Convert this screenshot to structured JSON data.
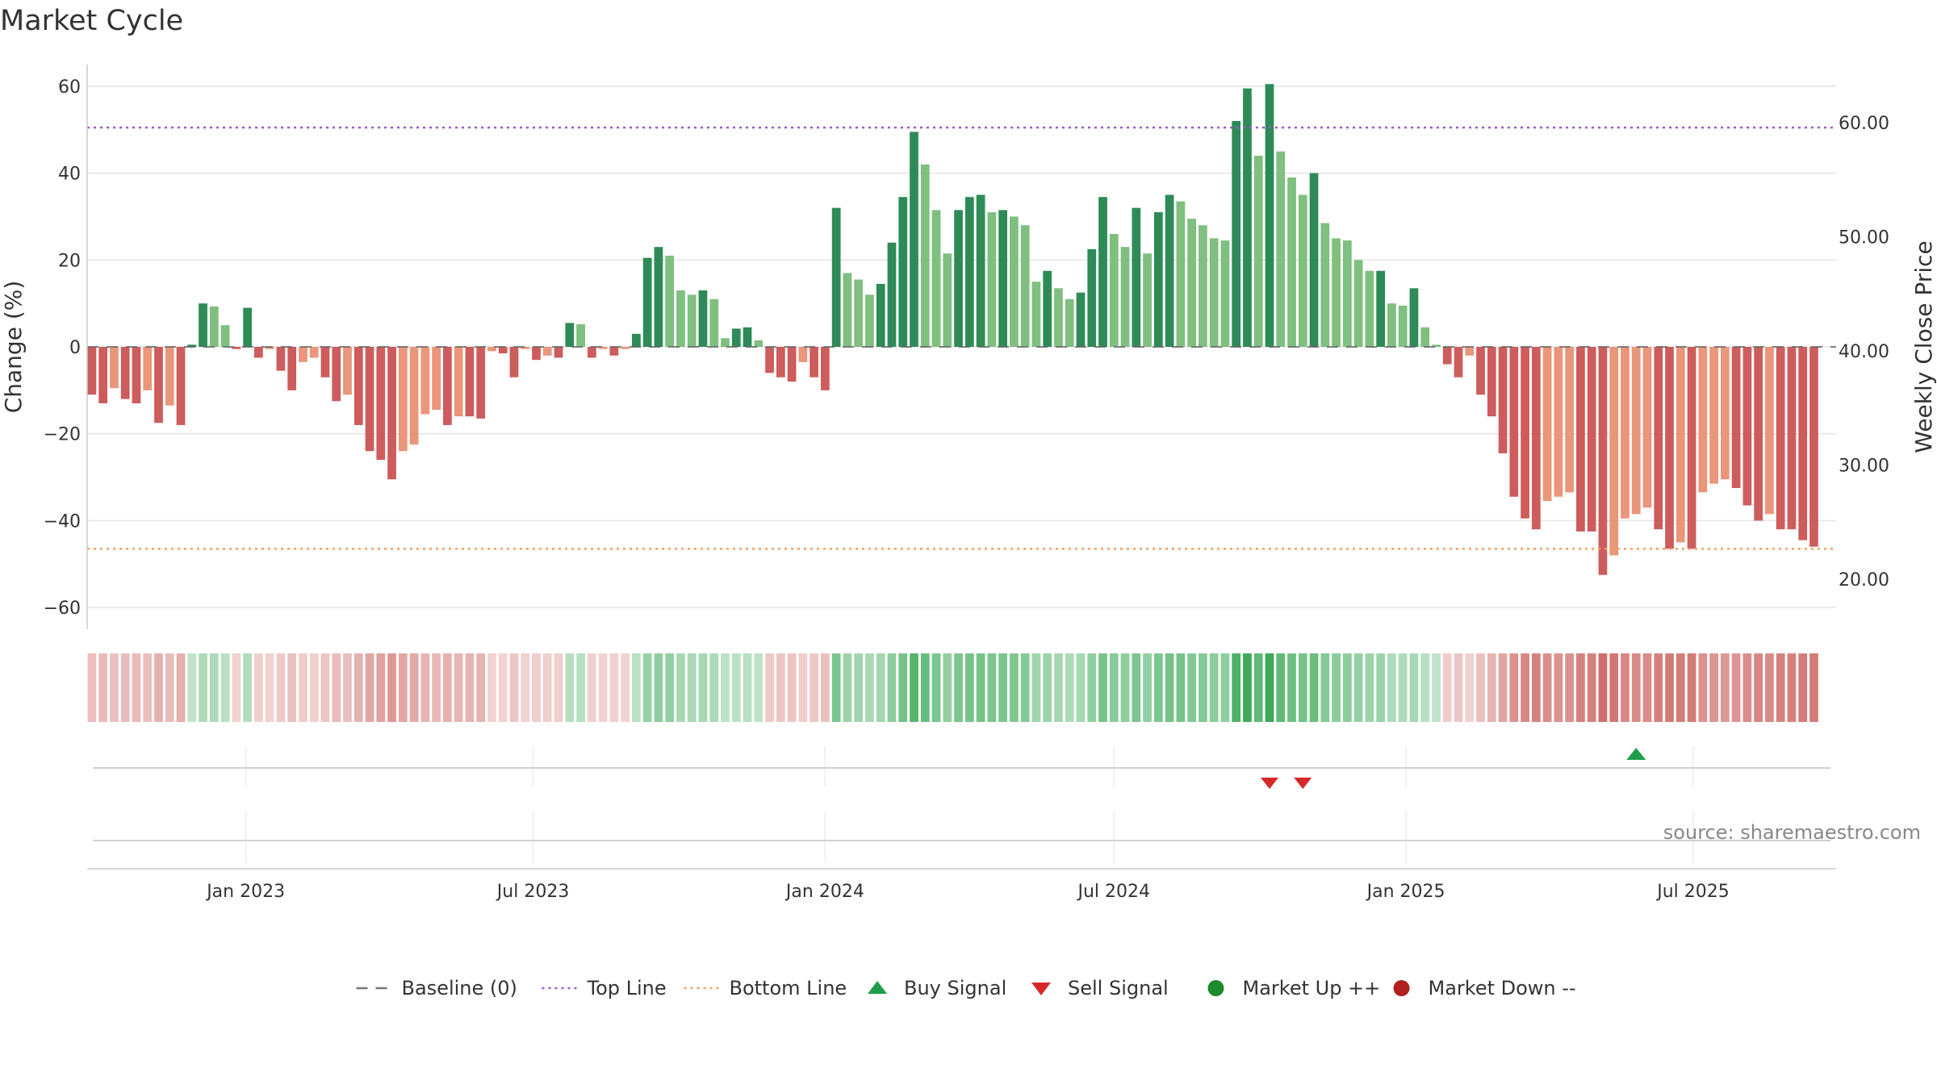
{
  "chart_data": {
    "type": "bar",
    "title": "Market Cycle",
    "ylabel": "Change (%)",
    "y2label": "Weekly Close Price",
    "ylim": [
      -65,
      65
    ],
    "y2lim": [
      15.6,
      65.1
    ],
    "yticks": [
      -60,
      -40,
      -20,
      0,
      20,
      40,
      60
    ],
    "ytick_labels": [
      "−60",
      "−40",
      "−20",
      "0",
      "20",
      "40",
      "60"
    ],
    "y2ticks": [
      20,
      30,
      40,
      50,
      60
    ],
    "y2tick_labels": [
      "20.00",
      "30.00",
      "40.00",
      "50.00",
      "60.00"
    ],
    "xlim": [
      "2022-09-23",
      "2025-09-29"
    ],
    "xticks": [
      "2023-01-01",
      "2023-07-01",
      "2024-01-01",
      "2024-07-01",
      "2025-01-01",
      "2025-07-01"
    ],
    "xtick_labels": [
      "Jan 2023",
      "Jul 2023",
      "Jan 2024",
      "Jul 2024",
      "Jan 2025",
      "Jul 2025"
    ],
    "first_week": "2022-09-26",
    "top_line": 50.5,
    "bottom_line": -46.5,
    "baseline": 0,
    "values": [
      -11,
      -13,
      -9.5,
      -12,
      -13,
      -10,
      -17.5,
      -13.5,
      -18,
      0.5,
      10,
      9.3,
      5,
      -0.5,
      9,
      -2.5,
      -0.5,
      -5.5,
      -10,
      -3.5,
      -2.5,
      -7,
      -12.5,
      -11,
      -18,
      -24,
      -26,
      -30.5,
      -24,
      -22.5,
      -15.5,
      -14.5,
      -18,
      -16,
      -16,
      -16.5,
      -1,
      -1.5,
      -7,
      -0.5,
      -3,
      -2,
      -2.5,
      5.5,
      5.2,
      -2.5,
      -0.5,
      -2,
      -0.5,
      3,
      20.5,
      23,
      21,
      13,
      12,
      13,
      11,
      2,
      4.2,
      4.5,
      1.5,
      -6,
      -7,
      -8,
      -3.5,
      -7,
      -10,
      32,
      17,
      15.5,
      12,
      14.5,
      24,
      34.5,
      49.5,
      42,
      31.5,
      21.5,
      31.5,
      34.5,
      35,
      31,
      31.5,
      30,
      28,
      15,
      17.5,
      13.5,
      11,
      12.5,
      22.5,
      34.5,
      26,
      23,
      32,
      21.5,
      31,
      35,
      33.5,
      29.5,
      28,
      25,
      24.5,
      52,
      59.5,
      44,
      60.5,
      45,
      39,
      35,
      40,
      28.5,
      25,
      24.5,
      20,
      17.5,
      17.5,
      10,
      9.5,
      13.5,
      4.5,
      0.5,
      -4,
      -7,
      -2,
      -11,
      -16,
      -24.5,
      -34.5,
      -39.5,
      -42,
      -35.5,
      -34.5,
      -33.5,
      -42.5,
      -42.5,
      -52.5,
      -48,
      -39.5,
      -38.5,
      -37,
      -42,
      -46.5,
      -45,
      -46.5,
      -33.5,
      -31.5,
      -30.5,
      -32.5,
      -36.5,
      -40,
      -38.5,
      -42,
      -42,
      -44.5,
      -46
    ],
    "signals": [
      {
        "type": "sell",
        "week": 106
      },
      {
        "type": "sell",
        "week": 109
      },
      {
        "type": "buy",
        "week": 139
      }
    ],
    "legend_position": "bottom-center",
    "legend": [
      {
        "label": "Baseline (0)",
        "kind": "dash",
        "color": "#777777"
      },
      {
        "label": "Top Line",
        "kind": "dot",
        "color": "#9b59d0"
      },
      {
        "label": "Bottom Line",
        "kind": "dot",
        "color": "#f0a060"
      },
      {
        "label": "Buy Signal",
        "kind": "triangle-up",
        "color": "#1e9e4a"
      },
      {
        "label": "Sell Signal",
        "kind": "triangle-down",
        "color": "#d62828"
      },
      {
        "label": "Market Up ++",
        "kind": "circle",
        "color": "#1e8a2e"
      },
      {
        "label": "Market Down --",
        "kind": "circle",
        "color": "#b02020"
      }
    ],
    "colors": {
      "pos_strong": "#2e8b57",
      "pos_weak": "#7fbf7f",
      "neg_strong": "#cd5c5c",
      "neg_weak": "#e9967a",
      "top_line": "#9b59d0",
      "bottom_line": "#f0a060",
      "grid": "#e5e5e5"
    },
    "source": "source: sharemaestro.com",
    "grid": true
  }
}
